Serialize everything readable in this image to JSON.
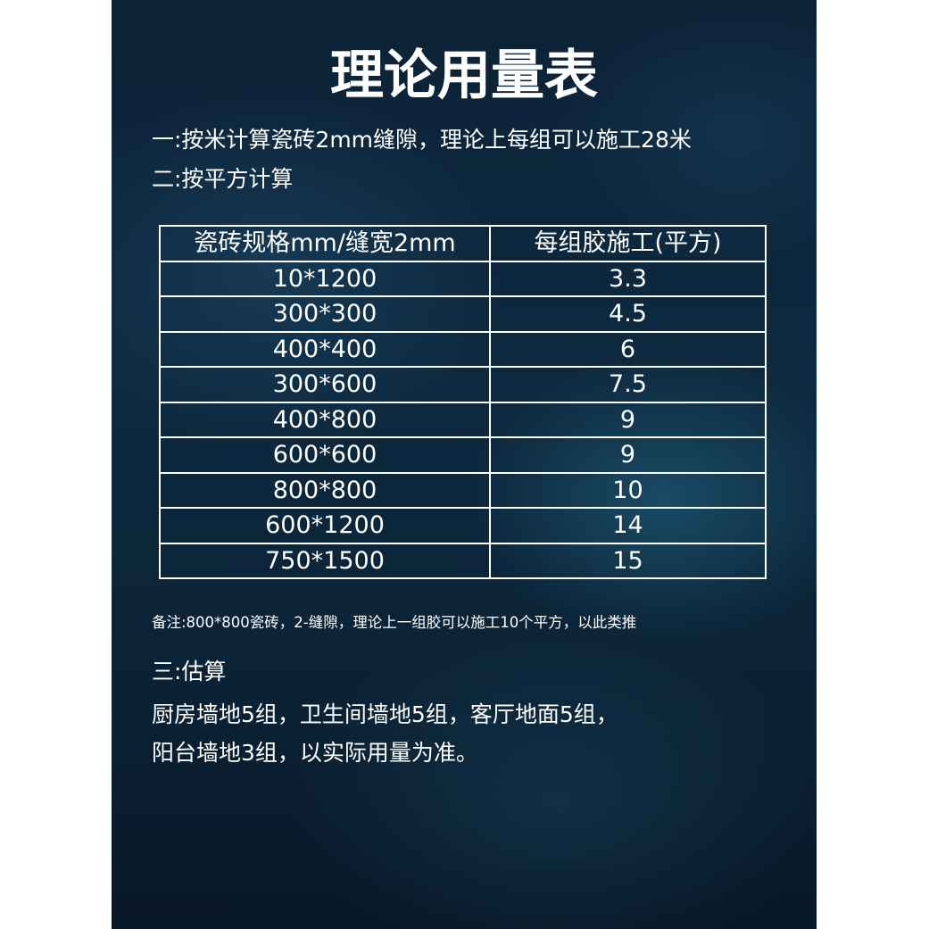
{
  "title": "理论用量表",
  "lines": [
    "一:按米计算瓷砖2mm缝隙，理论上每组可以施工28米",
    "二:按平方计算"
  ],
  "table": {
    "header": [
      "瓷砖规格mm/缝宽2mm",
      "每组胶施工(平方)"
    ],
    "rows": [
      [
        "10*1200",
        "3.3"
      ],
      [
        "300*300",
        "4.5"
      ],
      [
        "400*400",
        "6"
      ],
      [
        "300*600",
        "7.5"
      ],
      [
        "400*800",
        "9"
      ],
      [
        "600*600",
        "9"
      ],
      [
        "800*800",
        "10"
      ],
      [
        "600*1200",
        "14"
      ],
      [
        "750*1500",
        "15"
      ]
    ]
  },
  "note": "备注:800*800瓷砖，2-缝隙，理论上一组胶可以施工10个平方，以此类推",
  "section3": {
    "heading": "三:估算",
    "lines": [
      "厨房墙地5组，卫生间墙地5组，客厅地面5组，",
      "阳台墙地3组，以实际用量为准。"
    ]
  }
}
